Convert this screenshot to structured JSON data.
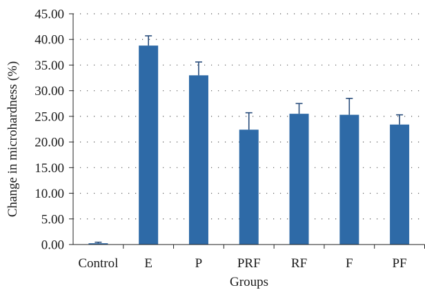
{
  "chart_data": {
    "type": "bar",
    "xlabel": "Groups",
    "ylabel": "Change in microhardness (%)",
    "categories": [
      "Control",
      "E",
      "P",
      "PRF",
      "RF",
      "F",
      "PF"
    ],
    "values": [
      0.25,
      38.8,
      33.0,
      22.4,
      25.5,
      25.3,
      23.4
    ],
    "errors": [
      0.2,
      1.9,
      2.6,
      3.3,
      2.0,
      3.2,
      1.9
    ],
    "ylim": [
      0,
      45
    ],
    "y_ticks": [
      0,
      5,
      10,
      15,
      20,
      25,
      30,
      35,
      40,
      45
    ],
    "y_tick_labels": [
      "0.00",
      "5.00",
      "10.00",
      "15.00",
      "20.00",
      "25.00",
      "30.00",
      "35.00",
      "40.00",
      "45.00"
    ],
    "grid": true,
    "bar_color": "#2e6aa7",
    "error_bar_color": "#274b7a",
    "grid_color": "#555555",
    "axis_color": "#222222"
  }
}
